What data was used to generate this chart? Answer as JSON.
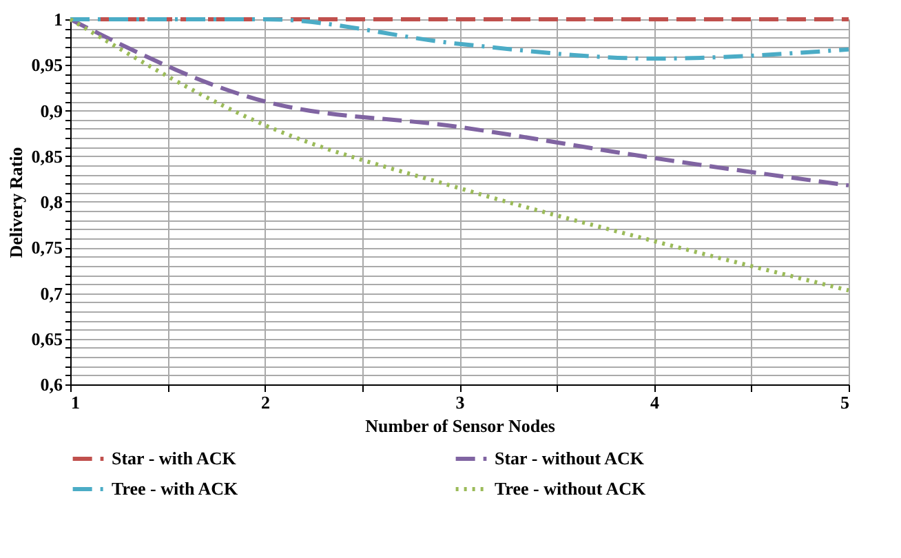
{
  "chart_data": {
    "type": "line",
    "xlabel": "Number of Sensor Nodes",
    "ylabel": "Delivery Ratio",
    "x": [
      1,
      2,
      3,
      4,
      5
    ],
    "series": [
      {
        "name": "Star - with ACK",
        "color": "#c0504d",
        "line_style": "dashed",
        "values": [
          1,
          1,
          1,
          1,
          1
        ]
      },
      {
        "name": "Star - without ACK",
        "color": "#8064a2",
        "line_style": "dashed",
        "values": [
          1,
          0.91,
          0.882,
          0.848,
          0.818
        ]
      },
      {
        "name": "Tree - with ACK",
        "color": "#4bacc6",
        "line_style": "dashdot",
        "values": [
          1,
          1,
          0.973,
          0.957,
          0.967
        ]
      },
      {
        "name": "Tree - without ACK",
        "color": "#9bbb59",
        "line_style": "dotted",
        "values": [
          1,
          0.884,
          0.815,
          0.757,
          0.703
        ]
      }
    ],
    "xlim": [
      1,
      5
    ],
    "xticks": [
      1,
      {
        "value": 1.5,
        "label": null
      },
      2,
      {
        "value": 2.5,
        "label": null
      },
      3,
      {
        "value": 3.5,
        "label": null
      },
      4,
      {
        "value": 4.5,
        "label": null
      },
      5
    ],
    "ylim": [
      0.6,
      1
    ],
    "yticks": [
      {
        "value": 0.6,
        "label": "0,6"
      },
      {
        "value": 0.61,
        "label": null
      },
      {
        "value": 0.62,
        "label": null
      },
      {
        "value": 0.63,
        "label": null
      },
      {
        "value": 0.64,
        "label": null
      },
      {
        "value": 0.65,
        "label": "0,65"
      },
      {
        "value": 0.66,
        "label": null
      },
      {
        "value": 0.67,
        "label": null
      },
      {
        "value": 0.68,
        "label": null
      },
      {
        "value": 0.69,
        "label": null
      },
      {
        "value": 0.7,
        "label": "0,7"
      },
      {
        "value": 0.71,
        "label": null
      },
      {
        "value": 0.72,
        "label": null
      },
      {
        "value": 0.73,
        "label": null
      },
      {
        "value": 0.74,
        "label": null
      },
      {
        "value": 0.75,
        "label": "0,75"
      },
      {
        "value": 0.76,
        "label": null
      },
      {
        "value": 0.77,
        "label": null
      },
      {
        "value": 0.78,
        "label": null
      },
      {
        "value": 0.79,
        "label": null
      },
      {
        "value": 0.8,
        "label": "0,8"
      },
      {
        "value": 0.81,
        "label": null
      },
      {
        "value": 0.82,
        "label": null
      },
      {
        "value": 0.83,
        "label": null
      },
      {
        "value": 0.84,
        "label": null
      },
      {
        "value": 0.85,
        "label": "0,85"
      },
      {
        "value": 0.86,
        "label": null
      },
      {
        "value": 0.87,
        "label": null
      },
      {
        "value": 0.88,
        "label": null
      },
      {
        "value": 0.89,
        "label": null
      },
      {
        "value": 0.9,
        "label": "0,9"
      },
      {
        "value": 0.91,
        "label": null
      },
      {
        "value": 0.92,
        "label": null
      },
      {
        "value": 0.93,
        "label": null
      },
      {
        "value": 0.94,
        "label": null
      },
      {
        "value": 0.95,
        "label": "0,95"
      },
      {
        "value": 0.96,
        "label": null
      },
      {
        "value": 0.97,
        "label": null
      },
      {
        "value": 0.98,
        "label": null
      },
      {
        "value": 0.99,
        "label": null
      },
      {
        "value": 1,
        "label": "1"
      }
    ],
    "grid": true,
    "legend": "bottom",
    "marker": "none"
  }
}
